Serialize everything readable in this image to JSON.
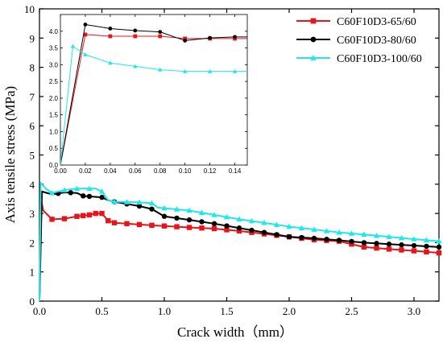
{
  "chart_data": {
    "type": "line",
    "xlabel": "Crack width（mm）",
    "ylabel": "Axis tensile stress (MPa)",
    "xlim": [
      0,
      3.2
    ],
    "ylim": [
      0,
      10
    ],
    "xticks": [
      "0.0",
      "0.5",
      "1.0",
      "1.5",
      "2.0",
      "2.5",
      "3.0"
    ],
    "xtick_values": [
      0,
      0.5,
      1.0,
      1.5,
      2.0,
      2.5,
      3.0
    ],
    "yticks": [
      "0",
      "1",
      "2",
      "3",
      "4",
      "5",
      "6",
      "7",
      "8",
      "9",
      "10"
    ],
    "ytick_values": [
      0,
      1,
      2,
      3,
      4,
      5,
      6,
      7,
      8,
      9,
      10
    ],
    "legend_position": "top-right",
    "series": [
      {
        "name": "C60F10D3-65/60",
        "color": "#e8141c",
        "marker": "square",
        "points": [
          [
            0,
            0
          ],
          [
            0.01,
            3.55
          ],
          [
            0.03,
            3.1
          ],
          [
            0.1,
            2.8
          ],
          [
            0.2,
            2.82
          ],
          [
            0.3,
            2.9
          ],
          [
            0.4,
            2.95
          ],
          [
            0.45,
            3.0
          ],
          [
            0.5,
            3.0
          ],
          [
            0.55,
            2.75
          ],
          [
            0.6,
            2.68
          ],
          [
            0.8,
            2.62
          ],
          [
            1.0,
            2.57
          ],
          [
            1.2,
            2.52
          ],
          [
            1.4,
            2.48
          ],
          [
            1.6,
            2.4
          ],
          [
            1.8,
            2.3
          ],
          [
            2.0,
            2.2
          ],
          [
            2.2,
            2.1
          ],
          [
            2.4,
            2.05
          ],
          [
            2.5,
            1.95
          ],
          [
            2.6,
            1.85
          ],
          [
            2.8,
            1.78
          ],
          [
            3.0,
            1.72
          ],
          [
            3.2,
            1.65
          ]
        ],
        "marker_x": [
          0.1,
          0.2,
          0.3,
          0.35,
          0.4,
          0.45,
          0.5,
          0.55,
          0.6,
          0.7,
          0.8,
          0.9,
          1.0,
          1.1,
          1.2,
          1.3,
          1.4,
          1.5,
          1.6,
          1.7,
          1.8,
          1.9,
          2.0,
          2.1,
          2.2,
          2.3,
          2.4,
          2.5,
          2.6,
          2.7,
          2.8,
          2.9,
          3.0,
          3.1,
          3.2
        ]
      },
      {
        "name": "C60F10D3-80/60",
        "color": "#000000",
        "marker": "circle",
        "points": [
          [
            0,
            0
          ],
          [
            0.02,
            3.75
          ],
          [
            0.1,
            3.65
          ],
          [
            0.2,
            3.72
          ],
          [
            0.3,
            3.7
          ],
          [
            0.35,
            3.6
          ],
          [
            0.5,
            3.55
          ],
          [
            0.55,
            3.45
          ],
          [
            0.6,
            3.4
          ],
          [
            0.8,
            3.25
          ],
          [
            0.9,
            3.15
          ],
          [
            1.0,
            2.9
          ],
          [
            1.2,
            2.78
          ],
          [
            1.4,
            2.65
          ],
          [
            1.6,
            2.5
          ],
          [
            1.8,
            2.35
          ],
          [
            2.0,
            2.2
          ],
          [
            2.2,
            2.15
          ],
          [
            2.4,
            2.08
          ],
          [
            2.6,
            2.0
          ],
          [
            2.8,
            1.95
          ],
          [
            3.0,
            1.9
          ],
          [
            3.2,
            1.85
          ]
        ],
        "marker_x": [
          0.15,
          0.25,
          0.35,
          0.4,
          0.5,
          0.6,
          0.7,
          0.8,
          0.9,
          1.0,
          1.1,
          1.2,
          1.3,
          1.4,
          1.5,
          1.6,
          1.7,
          1.8,
          1.9,
          2.0,
          2.1,
          2.2,
          2.3,
          2.4,
          2.5,
          2.6,
          2.7,
          2.8,
          2.9,
          3.0,
          3.1,
          3.2
        ]
      },
      {
        "name": "C60F10D3-100/60",
        "color": "#1ee8ea",
        "marker": "triangle",
        "points": [
          [
            0,
            0
          ],
          [
            0.01,
            4.05
          ],
          [
            0.05,
            3.85
          ],
          [
            0.1,
            3.7
          ],
          [
            0.2,
            3.8
          ],
          [
            0.3,
            3.85
          ],
          [
            0.4,
            3.85
          ],
          [
            0.45,
            3.85
          ],
          [
            0.5,
            3.75
          ],
          [
            0.55,
            3.45
          ],
          [
            0.6,
            3.4
          ],
          [
            0.8,
            3.38
          ],
          [
            0.9,
            3.35
          ],
          [
            0.95,
            3.2
          ],
          [
            1.2,
            3.1
          ],
          [
            1.4,
            2.95
          ],
          [
            1.6,
            2.8
          ],
          [
            1.8,
            2.68
          ],
          [
            2.0,
            2.55
          ],
          [
            2.2,
            2.45
          ],
          [
            2.4,
            2.35
          ],
          [
            2.6,
            2.28
          ],
          [
            2.8,
            2.2
          ],
          [
            3.0,
            2.12
          ],
          [
            3.2,
            2.05
          ]
        ],
        "marker_x": [
          0.1,
          0.2,
          0.3,
          0.4,
          0.5,
          0.6,
          0.7,
          0.8,
          0.9,
          1.0,
          1.1,
          1.2,
          1.3,
          1.4,
          1.5,
          1.6,
          1.7,
          1.8,
          1.9,
          2.0,
          2.1,
          2.2,
          2.3,
          2.4,
          2.5,
          2.6,
          2.7,
          2.8,
          2.9,
          3.0,
          3.1,
          3.2
        ]
      }
    ],
    "inset": {
      "xlim": [
        0,
        0.15
      ],
      "ylim": [
        0,
        4.5
      ],
      "xticks": [
        "0.00",
        "0.02",
        "0.04",
        "0.06",
        "0.08",
        "0.10",
        "0.12",
        "0.14"
      ],
      "xtick_values": [
        0,
        0.02,
        0.04,
        0.06,
        0.08,
        0.1,
        0.12,
        0.14
      ],
      "yticks": [
        "0.0",
        "0.5",
        "1.0",
        "1.5",
        "2.0",
        "2.5",
        "3.0",
        "3.5",
        "4.0"
      ],
      "ytick_values": [
        0,
        0.5,
        1.0,
        1.5,
        2.0,
        2.5,
        3.0,
        3.5,
        4.0
      ],
      "series": [
        {
          "name": "C60F10D3-65/60",
          "color": "#e8141c",
          "marker": "square",
          "points": [
            [
              0,
              0
            ],
            [
              0.02,
              3.9
            ],
            [
              0.04,
              3.85
            ],
            [
              0.06,
              3.85
            ],
            [
              0.08,
              3.85
            ],
            [
              0.1,
              3.78
            ],
            [
              0.12,
              3.78
            ],
            [
              0.14,
              3.78
            ],
            [
              0.15,
              3.78
            ]
          ],
          "marker_x": [
            0.02,
            0.04,
            0.06,
            0.08,
            0.1,
            0.12,
            0.14
          ]
        },
        {
          "name": "C60F10D3-80/60",
          "color": "#000000",
          "marker": "circle",
          "points": [
            [
              0,
              0
            ],
            [
              0.02,
              4.2
            ],
            [
              0.04,
              4.08
            ],
            [
              0.06,
              4.02
            ],
            [
              0.08,
              3.98
            ],
            [
              0.1,
              3.72
            ],
            [
              0.12,
              3.8
            ],
            [
              0.14,
              3.83
            ],
            [
              0.15,
              3.83
            ]
          ],
          "marker_x": [
            0.02,
            0.04,
            0.06,
            0.08,
            0.1,
            0.12,
            0.14
          ]
        },
        {
          "name": "C60F10D3-100/60",
          "color": "#1ee8ea",
          "marker": "triangle",
          "points": [
            [
              0,
              0
            ],
            [
              0.01,
              3.55
            ],
            [
              0.02,
              3.3
            ],
            [
              0.04,
              3.05
            ],
            [
              0.06,
              2.95
            ],
            [
              0.08,
              2.85
            ],
            [
              0.1,
              2.8
            ],
            [
              0.12,
              2.8
            ],
            [
              0.14,
              2.8
            ],
            [
              0.15,
              2.8
            ]
          ],
          "marker_x": [
            0.01,
            0.02,
            0.04,
            0.06,
            0.08,
            0.1,
            0.12,
            0.14
          ]
        }
      ]
    }
  }
}
